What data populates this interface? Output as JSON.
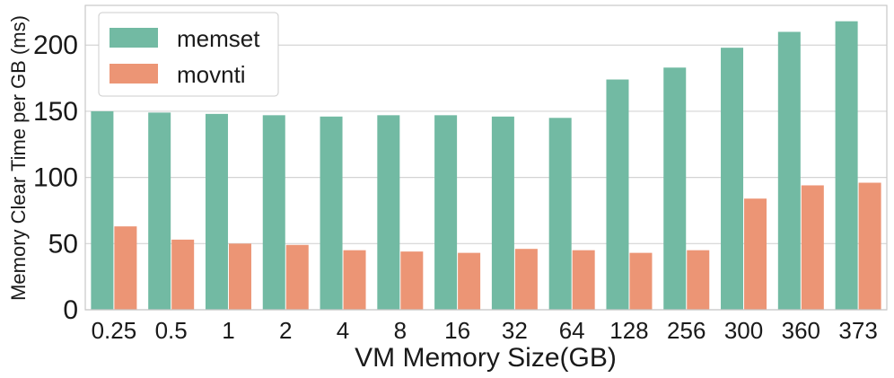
{
  "chart_data": {
    "type": "bar",
    "title": "",
    "xlabel": "VM Memory Size(GB)",
    "ylabel": "Memory Clear Time per GB (ms)",
    "ylim": [
      0,
      230
    ],
    "yticks": [
      0,
      50,
      100,
      150,
      200
    ],
    "grid": true,
    "legend_position": "top-left",
    "categories": [
      "0.25",
      "0.5",
      "1",
      "2",
      "4",
      "8",
      "16",
      "32",
      "64",
      "128",
      "256",
      "300",
      "360",
      "373"
    ],
    "series": [
      {
        "name": "memset",
        "color": "#72baa3",
        "values": [
          150,
          149,
          148,
          147,
          146,
          147,
          147,
          146,
          145,
          174,
          183,
          198,
          210,
          218
        ]
      },
      {
        "name": "movnti",
        "color": "#ec9575",
        "values": [
          63,
          53,
          50,
          49,
          45,
          44,
          43,
          46,
          45,
          43,
          45,
          84,
          94,
          96
        ]
      }
    ]
  }
}
